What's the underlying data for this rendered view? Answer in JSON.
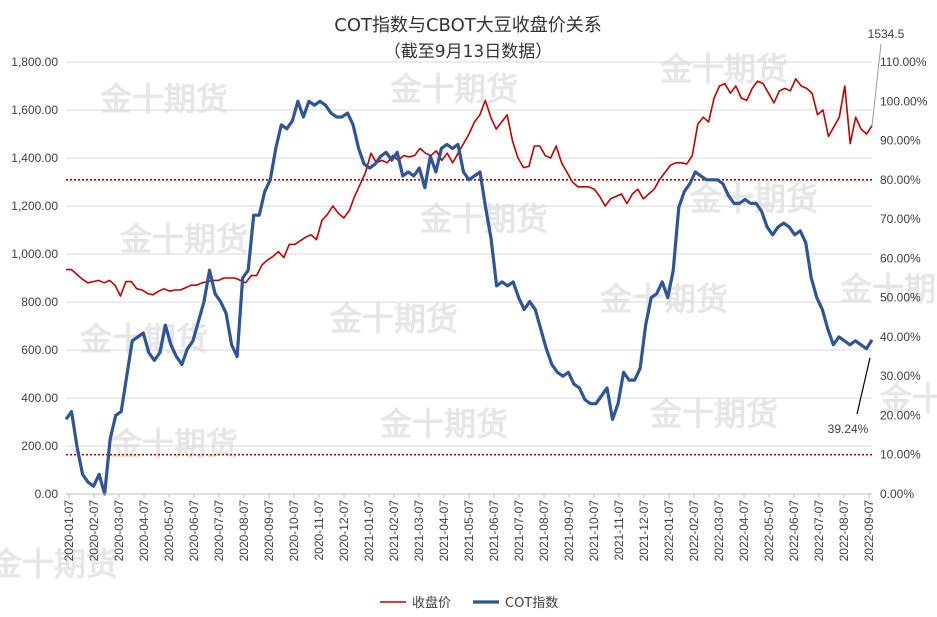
{
  "chart_data": {
    "type": "line",
    "title": "COT指数与CBOT大豆收盘价关系",
    "subtitle": "（截至9月13日数据）",
    "watermark": "金十期货",
    "left_axis": {
      "ylim": [
        0,
        1800
      ],
      "ticks": [
        "0.00",
        "200.00",
        "400.00",
        "600.00",
        "800.00",
        "1,000.00",
        "1,200.00",
        "1,400.00",
        "1,600.00",
        "1,800.00"
      ]
    },
    "right_axis": {
      "ylim": [
        0,
        1.1
      ],
      "ticks": [
        "0.00%",
        "10.00%",
        "20.00%",
        "30.00%",
        "40.00%",
        "50.00%",
        "60.00%",
        "70.00%",
        "80.00%",
        "90.00%",
        "100.00%",
        "110.00%"
      ]
    },
    "x_tick_labels": [
      "2020-01-07",
      "2020-02-07",
      "2020-03-07",
      "2020-04-07",
      "2020-05-07",
      "2020-06-07",
      "2020-07-07",
      "2020-08-07",
      "2020-09-07",
      "2020-10-07",
      "2020-11-07",
      "2020-12-07",
      "2021-01-07",
      "2021-02-07",
      "2021-03-07",
      "2021-04-07",
      "2021-05-07",
      "2021-06-07",
      "2021-07-07",
      "2021-08-07",
      "2021-09-07",
      "2021-10-07",
      "2021-11-07",
      "2021-12-07",
      "2022-01-07",
      "2022-02-07",
      "2022-03-07",
      "2022-04-07",
      "2022-05-07",
      "2022-06-07",
      "2022-07-07",
      "2022-08-07",
      "2022-09-07"
    ],
    "reference_lines_right_axis": [
      0.8,
      0.1
    ],
    "annotations": [
      {
        "text": "1534.5",
        "series": "收盘价"
      },
      {
        "text": "39.24%",
        "series": "COT指数"
      }
    ],
    "colors": {
      "price": "#c00000",
      "cot": "#2f5597",
      "reference": "#c00000",
      "grid": "#d9d9d9"
    },
    "series": [
      {
        "name": "收盘价",
        "axis": "left",
        "values": [
          935,
          935,
          915,
          895,
          880,
          885,
          890,
          880,
          890,
          870,
          825,
          885,
          885,
          855,
          850,
          835,
          830,
          845,
          855,
          845,
          850,
          850,
          860,
          870,
          870,
          880,
          885,
          890,
          890,
          900,
          900,
          900,
          890,
          880,
          910,
          910,
          955,
          975,
          990,
          1010,
          985,
          1040,
          1040,
          1055,
          1070,
          1080,
          1060,
          1140,
          1165,
          1200,
          1170,
          1150,
          1180,
          1240,
          1290,
          1340,
          1420,
          1380,
          1390,
          1380,
          1410,
          1390,
          1410,
          1405,
          1410,
          1440,
          1420,
          1410,
          1430,
          1390,
          1420,
          1380,
          1420,
          1460,
          1500,
          1550,
          1580,
          1640,
          1570,
          1520,
          1550,
          1580,
          1470,
          1400,
          1360,
          1365,
          1450,
          1450,
          1410,
          1400,
          1450,
          1380,
          1340,
          1300,
          1280,
          1280,
          1280,
          1270,
          1240,
          1200,
          1230,
          1240,
          1250,
          1210,
          1250,
          1270,
          1230,
          1250,
          1270,
          1310,
          1340,
          1370,
          1380,
          1380,
          1375,
          1410,
          1540,
          1570,
          1550,
          1650,
          1700,
          1710,
          1670,
          1700,
          1650,
          1640,
          1690,
          1720,
          1710,
          1670,
          1630,
          1680,
          1690,
          1680,
          1730,
          1700,
          1690,
          1670,
          1580,
          1600,
          1490,
          1530,
          1570,
          1700,
          1460,
          1570,
          1520,
          1500,
          1534.5
        ]
      },
      {
        "name": "COT指数",
        "axis": "right",
        "values": [
          0.19,
          0.21,
          0.12,
          0.05,
          0.03,
          0.02,
          0.05,
          0.0,
          0.14,
          0.2,
          0.21,
          0.3,
          0.39,
          0.4,
          0.41,
          0.36,
          0.34,
          0.36,
          0.43,
          0.38,
          0.35,
          0.33,
          0.37,
          0.39,
          0.44,
          0.49,
          0.57,
          0.51,
          0.49,
          0.46,
          0.38,
          0.35,
          0.55,
          0.57,
          0.71,
          0.71,
          0.77,
          0.8,
          0.88,
          0.94,
          0.93,
          0.95,
          1.0,
          0.96,
          1.0,
          0.99,
          1.0,
          0.99,
          0.97,
          0.96,
          0.96,
          0.97,
          0.94,
          0.88,
          0.84,
          0.83,
          0.84,
          0.86,
          0.87,
          0.85,
          0.87,
          0.81,
          0.82,
          0.81,
          0.83,
          0.78,
          0.86,
          0.82,
          0.88,
          0.89,
          0.88,
          0.89,
          0.82,
          0.8,
          0.81,
          0.82,
          0.73,
          0.65,
          0.53,
          0.54,
          0.53,
          0.54,
          0.5,
          0.47,
          0.49,
          0.47,
          0.42,
          0.37,
          0.33,
          0.31,
          0.3,
          0.31,
          0.28,
          0.27,
          0.24,
          0.23,
          0.23,
          0.25,
          0.27,
          0.19,
          0.23,
          0.31,
          0.29,
          0.29,
          0.32,
          0.43,
          0.5,
          0.51,
          0.54,
          0.5,
          0.57,
          0.73,
          0.77,
          0.79,
          0.82,
          0.81,
          0.8,
          0.8,
          0.8,
          0.79,
          0.76,
          0.74,
          0.74,
          0.75,
          0.74,
          0.74,
          0.72,
          0.68,
          0.66,
          0.68,
          0.69,
          0.68,
          0.66,
          0.67,
          0.64,
          0.55,
          0.5,
          0.47,
          0.42,
          0.38,
          0.4,
          0.39,
          0.38,
          0.39,
          0.38,
          0.37,
          0.3924
        ]
      }
    ],
    "legend": {
      "placement": "bottom",
      "items": [
        "收盘价",
        "COT指数"
      ]
    }
  }
}
